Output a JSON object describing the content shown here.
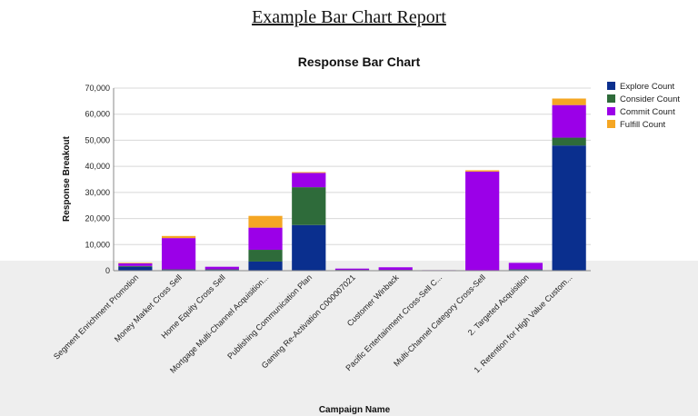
{
  "report_title": "Example Bar Chart Report",
  "chart_data": {
    "type": "bar",
    "stacked": true,
    "title": "Response Bar Chart",
    "xlabel": "Campaign Name",
    "ylabel": "Response Breakout",
    "ylim": [
      0,
      70000
    ],
    "yticks": [
      "0",
      "10,000",
      "20,000",
      "30,000",
      "40,000",
      "50,000",
      "60,000",
      "70,000"
    ],
    "grid": true,
    "legend_position": "top-right",
    "categories": [
      "Segment Enrichment Promotion",
      "Money Market Cross Sell",
      "Home Equity Cross Sell",
      "Mortgage Multi-Channel Acquisition...",
      "Publishing Communication Plan",
      "Gaming Re-Activation C000007021",
      "Customer Winback",
      "Pacific Entertainment Cross-Sell C...",
      "Multi-Channel Category Cross-Sell",
      "2. Targeted Acquisition",
      "1. Retention for High Value Custom..."
    ],
    "series": [
      {
        "name": "Explore Count",
        "color": "#0a2f8e",
        "values": [
          1500,
          300,
          300,
          3500,
          17500,
          200,
          200,
          0,
          0,
          300,
          48000
        ]
      },
      {
        "name": "Consider Count",
        "color": "#2e6b3a",
        "values": [
          300,
          200,
          200,
          4500,
          14500,
          100,
          100,
          0,
          0,
          200,
          3000
        ]
      },
      {
        "name": "Commit Count",
        "color": "#9b00e8",
        "values": [
          1000,
          12000,
          1000,
          8500,
          5500,
          500,
          1000,
          200,
          38000,
          2500,
          12500
        ]
      },
      {
        "name": "Fulfill Count",
        "color": "#f5a623",
        "values": [
          200,
          800,
          0,
          4500,
          300,
          0,
          0,
          0,
          500,
          0,
          2500
        ]
      }
    ]
  }
}
